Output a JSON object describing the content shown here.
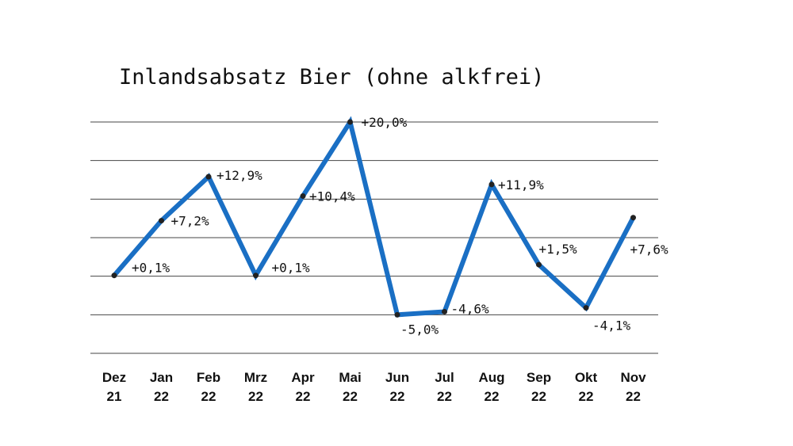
{
  "chart_data": {
    "type": "line",
    "title": "Inlandsabsatz Bier (ohne alkfrei)",
    "categories": [
      [
        "Dez",
        "21"
      ],
      [
        "Jan",
        "22"
      ],
      [
        "Feb",
        "22"
      ],
      [
        "Mrz",
        "22"
      ],
      [
        "Apr",
        "22"
      ],
      [
        "Mai",
        "22"
      ],
      [
        "Jun",
        "22"
      ],
      [
        "Jul",
        "22"
      ],
      [
        "Aug",
        "22"
      ],
      [
        "Sep",
        "22"
      ],
      [
        "Okt",
        "22"
      ],
      [
        "Nov",
        "22"
      ]
    ],
    "values": [
      0.1,
      7.2,
      12.9,
      0.1,
      10.4,
      20.0,
      -5.0,
      -4.6,
      11.9,
      1.5,
      -4.1,
      7.6
    ],
    "data_labels": [
      "+0,1%",
      "+7,2%",
      "+12,9%",
      "+0,1%",
      "+10,4%",
      "+20,0%",
      "-5,0%",
      "-4,6%",
      "+11,9%",
      "+1,5%",
      "-4,1%",
      "+7,6%"
    ],
    "ylim": [
      -10,
      20
    ],
    "grid": true,
    "colors": {
      "line": "#1a6fc4",
      "grid": "#444444",
      "text": "#111111"
    }
  }
}
